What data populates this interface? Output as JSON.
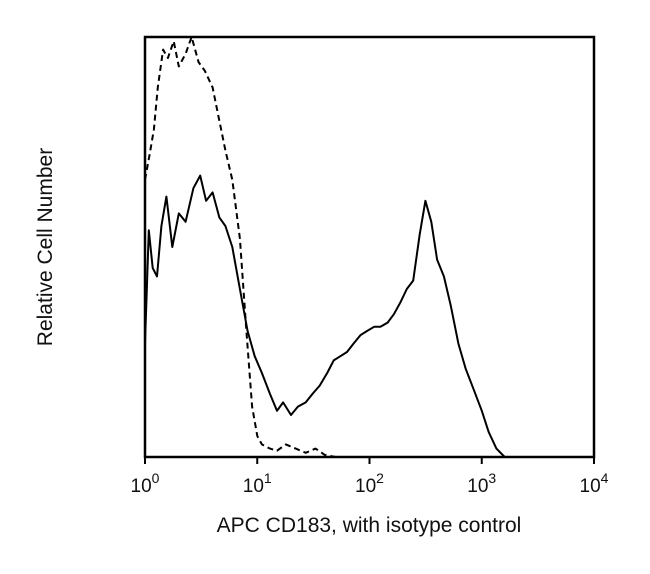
{
  "chart_data": {
    "type": "line",
    "title": "",
    "xlabel": "APC CD183, with isotype control",
    "ylabel": "Relative Cell Number",
    "x_scale": "log",
    "xlim": [
      1,
      10000
    ],
    "ylim": [
      0,
      100
    ],
    "grid": false,
    "legend": "none",
    "x_ticks": [
      {
        "base": "10",
        "exp": "0",
        "value": 1
      },
      {
        "base": "10",
        "exp": "1",
        "value": 10
      },
      {
        "base": "10",
        "exp": "2",
        "value": 100
      },
      {
        "base": "10",
        "exp": "3",
        "value": 1000
      },
      {
        "base": "10",
        "exp": "4",
        "value": 10000
      }
    ],
    "series": [
      {
        "style": "solid",
        "color": "#000000",
        "x": [
          1,
          1.08,
          1.17,
          1.28,
          1.4,
          1.55,
          1.75,
          2,
          2.3,
          2.7,
          3.1,
          3.5,
          4,
          4.6,
          5.2,
          6,
          7,
          8.2,
          9.5,
          11,
          13,
          15,
          17,
          20,
          23,
          27,
          31,
          36,
          42,
          48,
          55,
          63,
          72,
          83,
          95,
          110,
          125,
          145,
          165,
          190,
          215,
          245,
          280,
          315,
          355,
          400,
          460,
          530,
          620,
          720,
          850,
          1000,
          1150,
          1350,
          1600
        ],
        "y": [
          27,
          54,
          45,
          43,
          55,
          62,
          50,
          58,
          56,
          64,
          67,
          61,
          63,
          57,
          55,
          50,
          40,
          30,
          24,
          20,
          15,
          11,
          13,
          10,
          12,
          13,
          15,
          17,
          20,
          23,
          24,
          25,
          27,
          29,
          30,
          31,
          31,
          32,
          34,
          37,
          40,
          42,
          53,
          61,
          56,
          47,
          43,
          36,
          27,
          21,
          16,
          11,
          6,
          2,
          0
        ]
      },
      {
        "style": "dashed",
        "color": "#000000",
        "x": [
          1,
          1.1,
          1.2,
          1.3,
          1.45,
          1.6,
          1.8,
          2,
          2.3,
          2.6,
          3,
          3.4,
          4,
          4.6,
          5.2,
          6,
          7,
          8,
          9,
          10,
          11,
          13,
          15,
          18,
          22,
          27,
          33,
          40,
          50
        ],
        "y": [
          66,
          72,
          78,
          88,
          97,
          95,
          99,
          93,
          96,
          100,
          94,
          92,
          88,
          80,
          73,
          66,
          52,
          30,
          12,
          5,
          3,
          2,
          1.5,
          3,
          2,
          1,
          2,
          0.5,
          0
        ]
      }
    ]
  }
}
